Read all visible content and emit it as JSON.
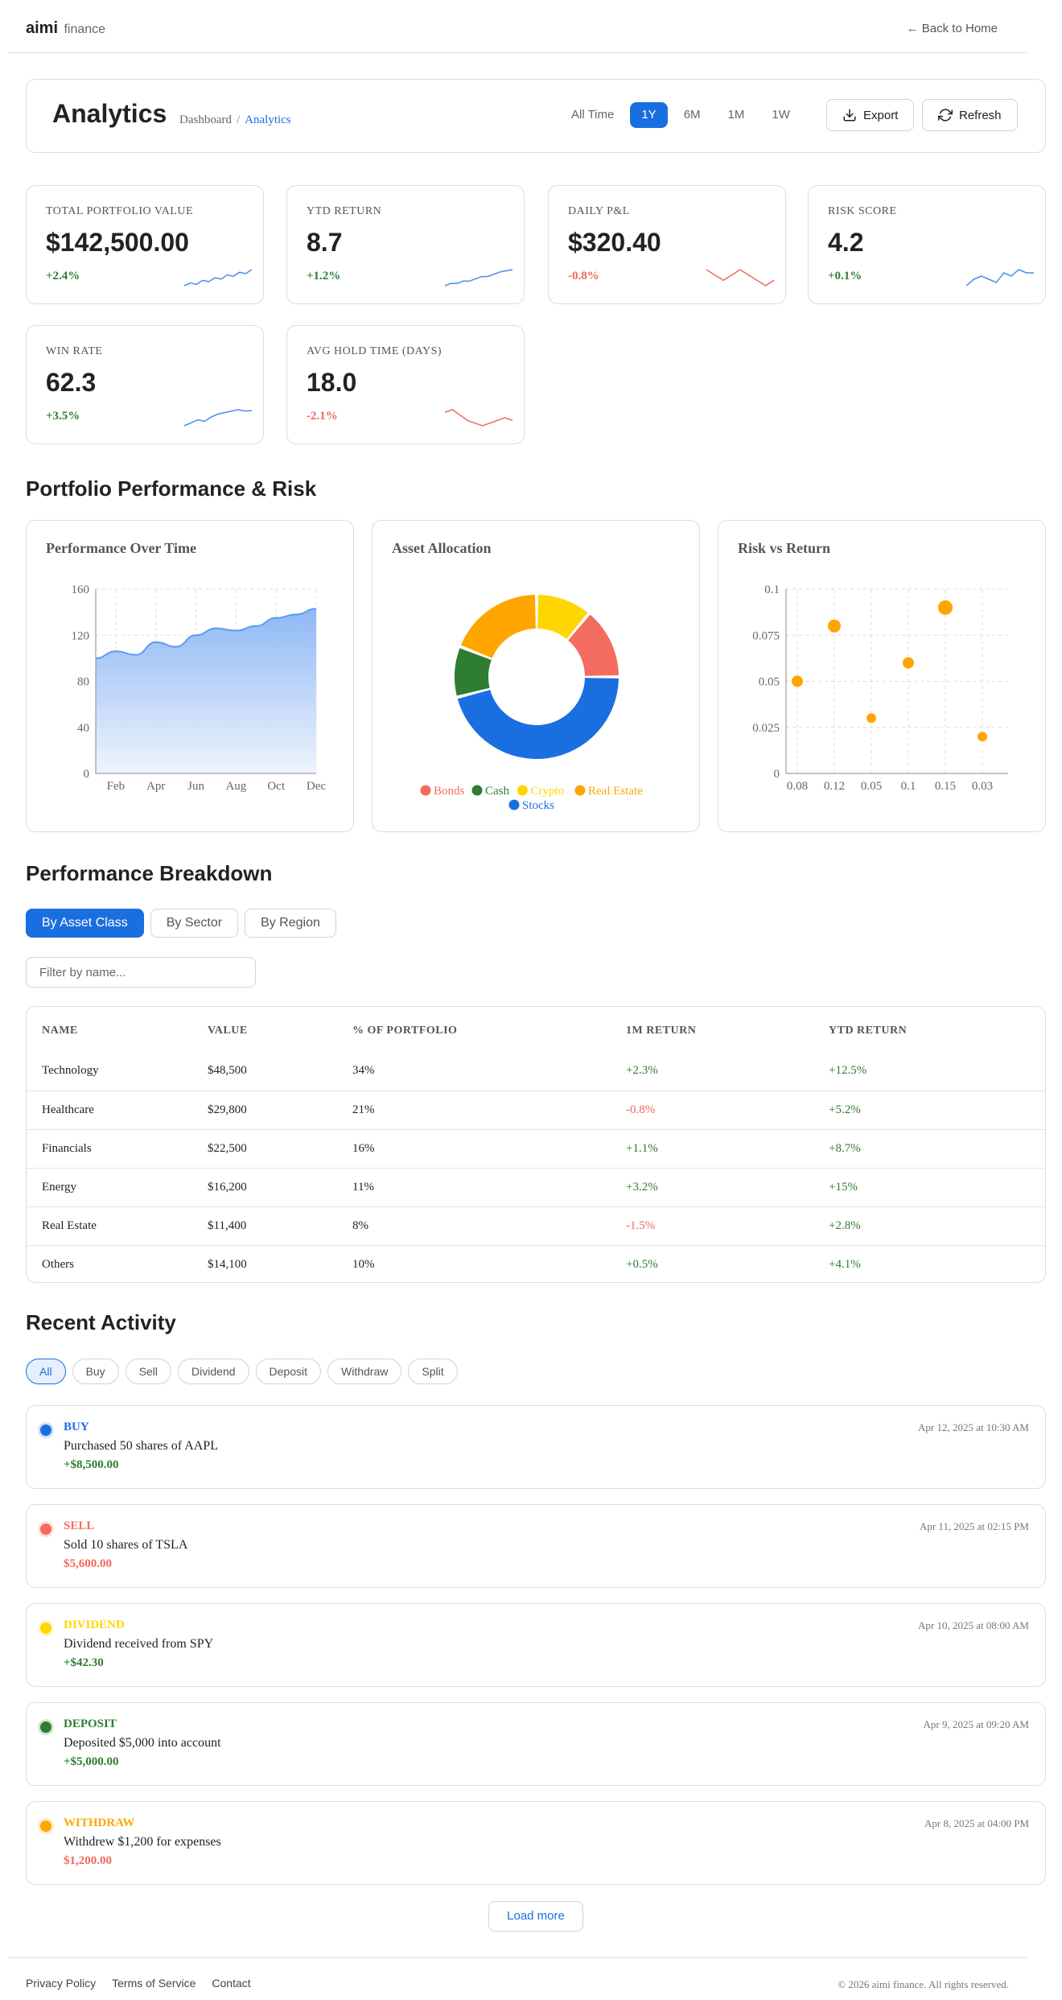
{
  "brand": {
    "name": "aimi",
    "suffix": "finance"
  },
  "nav": {
    "back": "← Back to Home"
  },
  "header": {
    "title": "Analytics",
    "breadcrumb": {
      "parent": "Dashboard",
      "sep": "/",
      "current": "Analytics"
    },
    "ranges": [
      "All Time",
      "1Y",
      "6M",
      "1M",
      "1W"
    ],
    "active_range": "1Y",
    "export_label": "Export",
    "refresh_label": "Refresh"
  },
  "kpis": [
    {
      "label": "TOTAL PORTFOLIO VALUE",
      "value": "$142,500.00",
      "change": "+2.4%",
      "trend": "up",
      "spark": [
        2,
        3,
        2.5,
        4,
        3.5,
        5,
        4.5,
        6,
        5.5,
        7,
        6.5,
        8
      ]
    },
    {
      "label": "YTD RETURN",
      "value": "8.7",
      "change": "+1.2%",
      "trend": "up",
      "spark": [
        1,
        2,
        2,
        3,
        3,
        4,
        5,
        5,
        6,
        7,
        7.5,
        8
      ]
    },
    {
      "label": "DAILY P&L",
      "value": "$320.40",
      "change": "-0.8%",
      "trend": "down",
      "spark": [
        8,
        6,
        4,
        6,
        8,
        6,
        4,
        2,
        4
      ]
    },
    {
      "label": "RISK SCORE",
      "value": "4.2",
      "change": "+0.1%",
      "trend": "up",
      "spark": [
        1,
        3,
        4,
        3,
        2,
        5,
        4,
        6,
        5,
        5
      ]
    },
    {
      "label": "WIN RATE",
      "value": "62.3",
      "change": "+3.5%",
      "trend": "up",
      "spark": [
        1,
        2,
        3,
        2.5,
        4,
        5,
        5.5,
        6,
        6.5,
        6,
        6.2
      ]
    },
    {
      "label": "AVG HOLD TIME (DAYS)",
      "value": "18.0",
      "change": "-2.1%",
      "trend": "down",
      "spark": [
        7,
        8,
        6,
        4,
        3,
        2,
        3,
        4,
        5,
        4
      ]
    }
  ],
  "sections": {
    "performance_risk": "Portfolio Performance & Risk",
    "breakdown": "Performance Breakdown",
    "activity": "Recent Activity"
  },
  "chart_data": [
    {
      "type": "area",
      "title": "Performance Over Time",
      "x": [
        "Jan",
        "Feb",
        "Mar",
        "Apr",
        "May",
        "Jun",
        "Jul",
        "Aug",
        "Sep",
        "Oct",
        "Nov",
        "Dec"
      ],
      "x_tick_labels": [
        "Feb",
        "Apr",
        "Jun",
        "Aug",
        "Oct",
        "Dec"
      ],
      "values": [
        100,
        106,
        103,
        114,
        110,
        120,
        126,
        124,
        128,
        135,
        138,
        143
      ],
      "ylim": [
        0,
        160
      ],
      "yticks": [
        0,
        40,
        80,
        120,
        160
      ],
      "grid": true,
      "color": "#5b9cf0"
    },
    {
      "type": "pie",
      "title": "Asset Allocation",
      "donut": true,
      "labels": [
        "Bonds",
        "Cash",
        "Crypto",
        "Real Estate",
        "Stocks"
      ],
      "values": [
        14,
        10,
        11,
        19,
        46
      ],
      "colors": [
        "#f46b5f",
        "#2e7d32",
        "#ffd600",
        "#ffa500",
        "#1a6fe0"
      ],
      "legend": "bottom"
    },
    {
      "type": "scatter",
      "title": "Risk vs Return",
      "x_categories": [
        "0.08",
        "0.12",
        "0.05",
        "0.1",
        "0.15",
        "0.03"
      ],
      "points": [
        {
          "x": "0.08",
          "y": 0.05,
          "size": 6
        },
        {
          "x": "0.12",
          "y": 0.08,
          "size": 7
        },
        {
          "x": "0.05",
          "y": 0.03,
          "size": 5
        },
        {
          "x": "0.1",
          "y": 0.06,
          "size": 6
        },
        {
          "x": "0.15",
          "y": 0.09,
          "size": 8
        },
        {
          "x": "0.03",
          "y": 0.02,
          "size": 5
        }
      ],
      "ylim": [
        0,
        0.1
      ],
      "yticks": [
        "0",
        "0.025",
        "0.05",
        "0.075",
        "0.1"
      ],
      "grid": true,
      "color": "#ffa500"
    }
  ],
  "breakdown": {
    "tabs": [
      "By Asset Class",
      "By Sector",
      "By Region"
    ],
    "active_tab": "By Asset Class",
    "filter_placeholder": "Filter by name...",
    "columns": [
      "NAME",
      "VALUE",
      "% OF PORTFOLIO",
      "1M RETURN",
      "YTD RETURN"
    ],
    "rows": [
      {
        "name": "Technology",
        "value": "$48,500",
        "pct": "34%",
        "m1": "+2.3%",
        "ytd": "+12.5%"
      },
      {
        "name": "Healthcare",
        "value": "$29,800",
        "pct": "21%",
        "m1": "-0.8%",
        "ytd": "+5.2%"
      },
      {
        "name": "Financials",
        "value": "$22,500",
        "pct": "16%",
        "m1": "+1.1%",
        "ytd": "+8.7%"
      },
      {
        "name": "Energy",
        "value": "$16,200",
        "pct": "11%",
        "m1": "+3.2%",
        "ytd": "+15%"
      },
      {
        "name": "Real Estate",
        "value": "$11,400",
        "pct": "8%",
        "m1": "-1.5%",
        "ytd": "+2.8%"
      },
      {
        "name": "Others",
        "value": "$14,100",
        "pct": "10%",
        "m1": "+0.5%",
        "ytd": "+4.1%"
      }
    ]
  },
  "activity": {
    "filters": [
      "All",
      "Buy",
      "Sell",
      "Dividend",
      "Deposit",
      "Withdraw",
      "Split"
    ],
    "active_filter": "All",
    "items": [
      {
        "type": "BUY",
        "desc": "Purchased 50 shares of AAPL",
        "amount": "+$8,500.00",
        "time": "Apr 12, 2025 at 10:30 AM",
        "color": "#1a6fe0",
        "amount_sign": "pos"
      },
      {
        "type": "SELL",
        "desc": "Sold 10 shares of TSLA",
        "amount": "$5,600.00",
        "time": "Apr 11, 2025 at 02:15 PM",
        "color": "#f46b5f",
        "amount_sign": "neg"
      },
      {
        "type": "DIVIDEND",
        "desc": "Dividend received from SPY",
        "amount": "+$42.30",
        "time": "Apr 10, 2025 at 08:00 AM",
        "color": "#ffd600",
        "amount_sign": "pos"
      },
      {
        "type": "DEPOSIT",
        "desc": "Deposited $5,000 into account",
        "amount": "+$5,000.00",
        "time": "Apr 9, 2025 at 09:20 AM",
        "color": "#2e7d32",
        "amount_sign": "pos"
      },
      {
        "type": "WITHDRAW",
        "desc": "Withdrew $1,200 for expenses",
        "amount": "$1,200.00",
        "time": "Apr 8, 2025 at 04:00 PM",
        "color": "#ffa500",
        "amount_sign": "neg"
      }
    ],
    "load_more": "Load more"
  },
  "footer": {
    "links": [
      "Privacy Policy",
      "Terms of Service",
      "Contact"
    ],
    "copyright": "© 2026 aimi finance. All rights reserved."
  },
  "colors": {
    "accent": "#1a6fe0",
    "positive": "#2e7d32",
    "negative": "#f0685e"
  }
}
